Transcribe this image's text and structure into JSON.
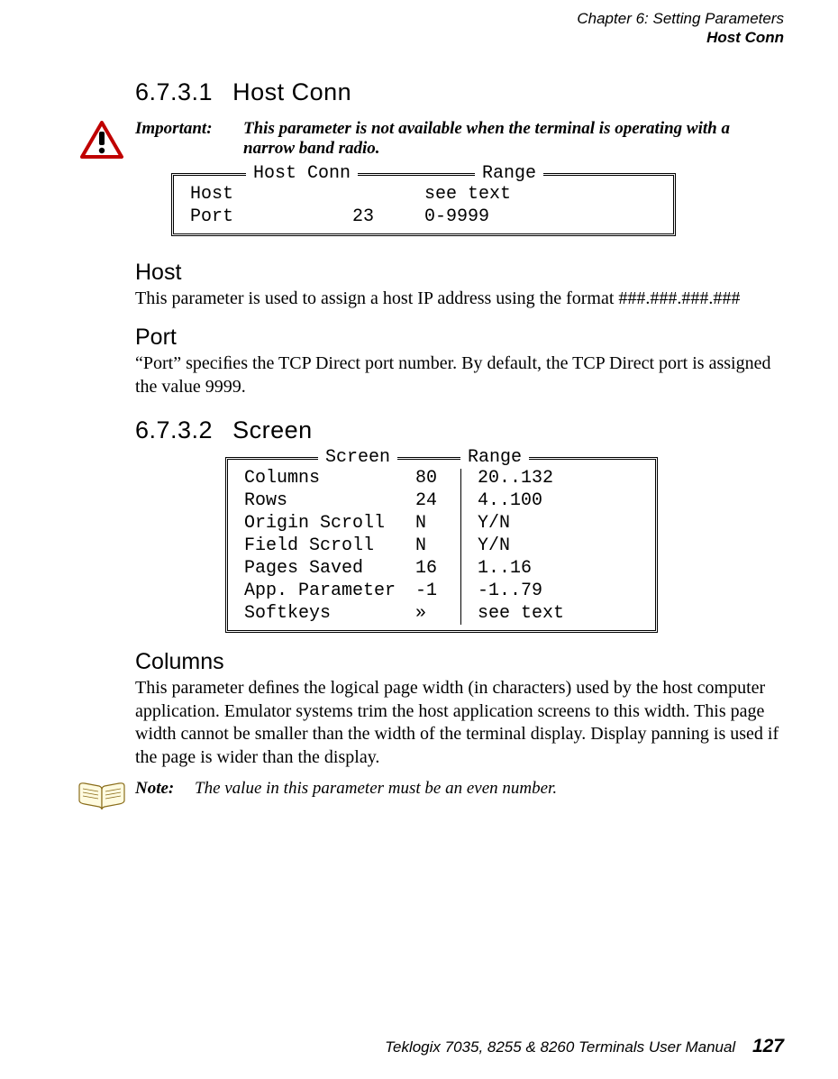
{
  "header": {
    "line1": "Chapter  6:  Setting Parameters",
    "line2": "Host Conn"
  },
  "section1": {
    "number": "6.7.3.1",
    "title": "Host Conn"
  },
  "important": {
    "label": "Important:",
    "text": "This parameter is not available when the terminal is operating with a narrow band radio."
  },
  "hostconn_box": {
    "legend_left": "Host Conn",
    "legend_right": "Range",
    "rows": [
      {
        "name": "Host",
        "value": "",
        "range": "see text"
      },
      {
        "name": "Port",
        "value": "23",
        "range": "0-9999"
      }
    ]
  },
  "host": {
    "heading": "Host",
    "text": "This parameter is used to assign a host IP address using the format ###.###.###.###"
  },
  "port": {
    "heading": "Port",
    "text": "“Port” speciﬁes the TCP Direct port number. By default, the TCP Direct port is assigned the value 9999."
  },
  "section2": {
    "number": "6.7.3.2",
    "title": "Screen"
  },
  "screen_box": {
    "legend_left": "Screen",
    "legend_right": "Range",
    "rows": [
      {
        "name": "Columns",
        "value": "80",
        "range": "20..132"
      },
      {
        "name": "Rows",
        "value": "24",
        "range": "4..100"
      },
      {
        "name": "Origin Scroll",
        "value": "N",
        "range": "Y/N"
      },
      {
        "name": "Field Scroll",
        "value": "N",
        "range": "Y/N"
      },
      {
        "name": "Pages Saved",
        "value": "16",
        "range": "1..16"
      },
      {
        "name": "App. Parameter",
        "value": "-1",
        "range": "-1..79"
      },
      {
        "name": "Softkeys",
        "value": "»",
        "range": "see text"
      }
    ]
  },
  "columns": {
    "heading": "Columns",
    "text": "This parameter deﬁnes the logical page width (in characters) used by the host computer application. Emulator systems trim the host application screens to this width. This page width cannot be smaller than the width of the terminal display. Display panning is used if the page is wider than the display."
  },
  "note": {
    "label": "Note:",
    "text": "The value in this parameter must be an even number."
  },
  "footer": {
    "text": "Teklogix 7035, 8255 & 8260 Terminals User Manual",
    "page": "127"
  }
}
